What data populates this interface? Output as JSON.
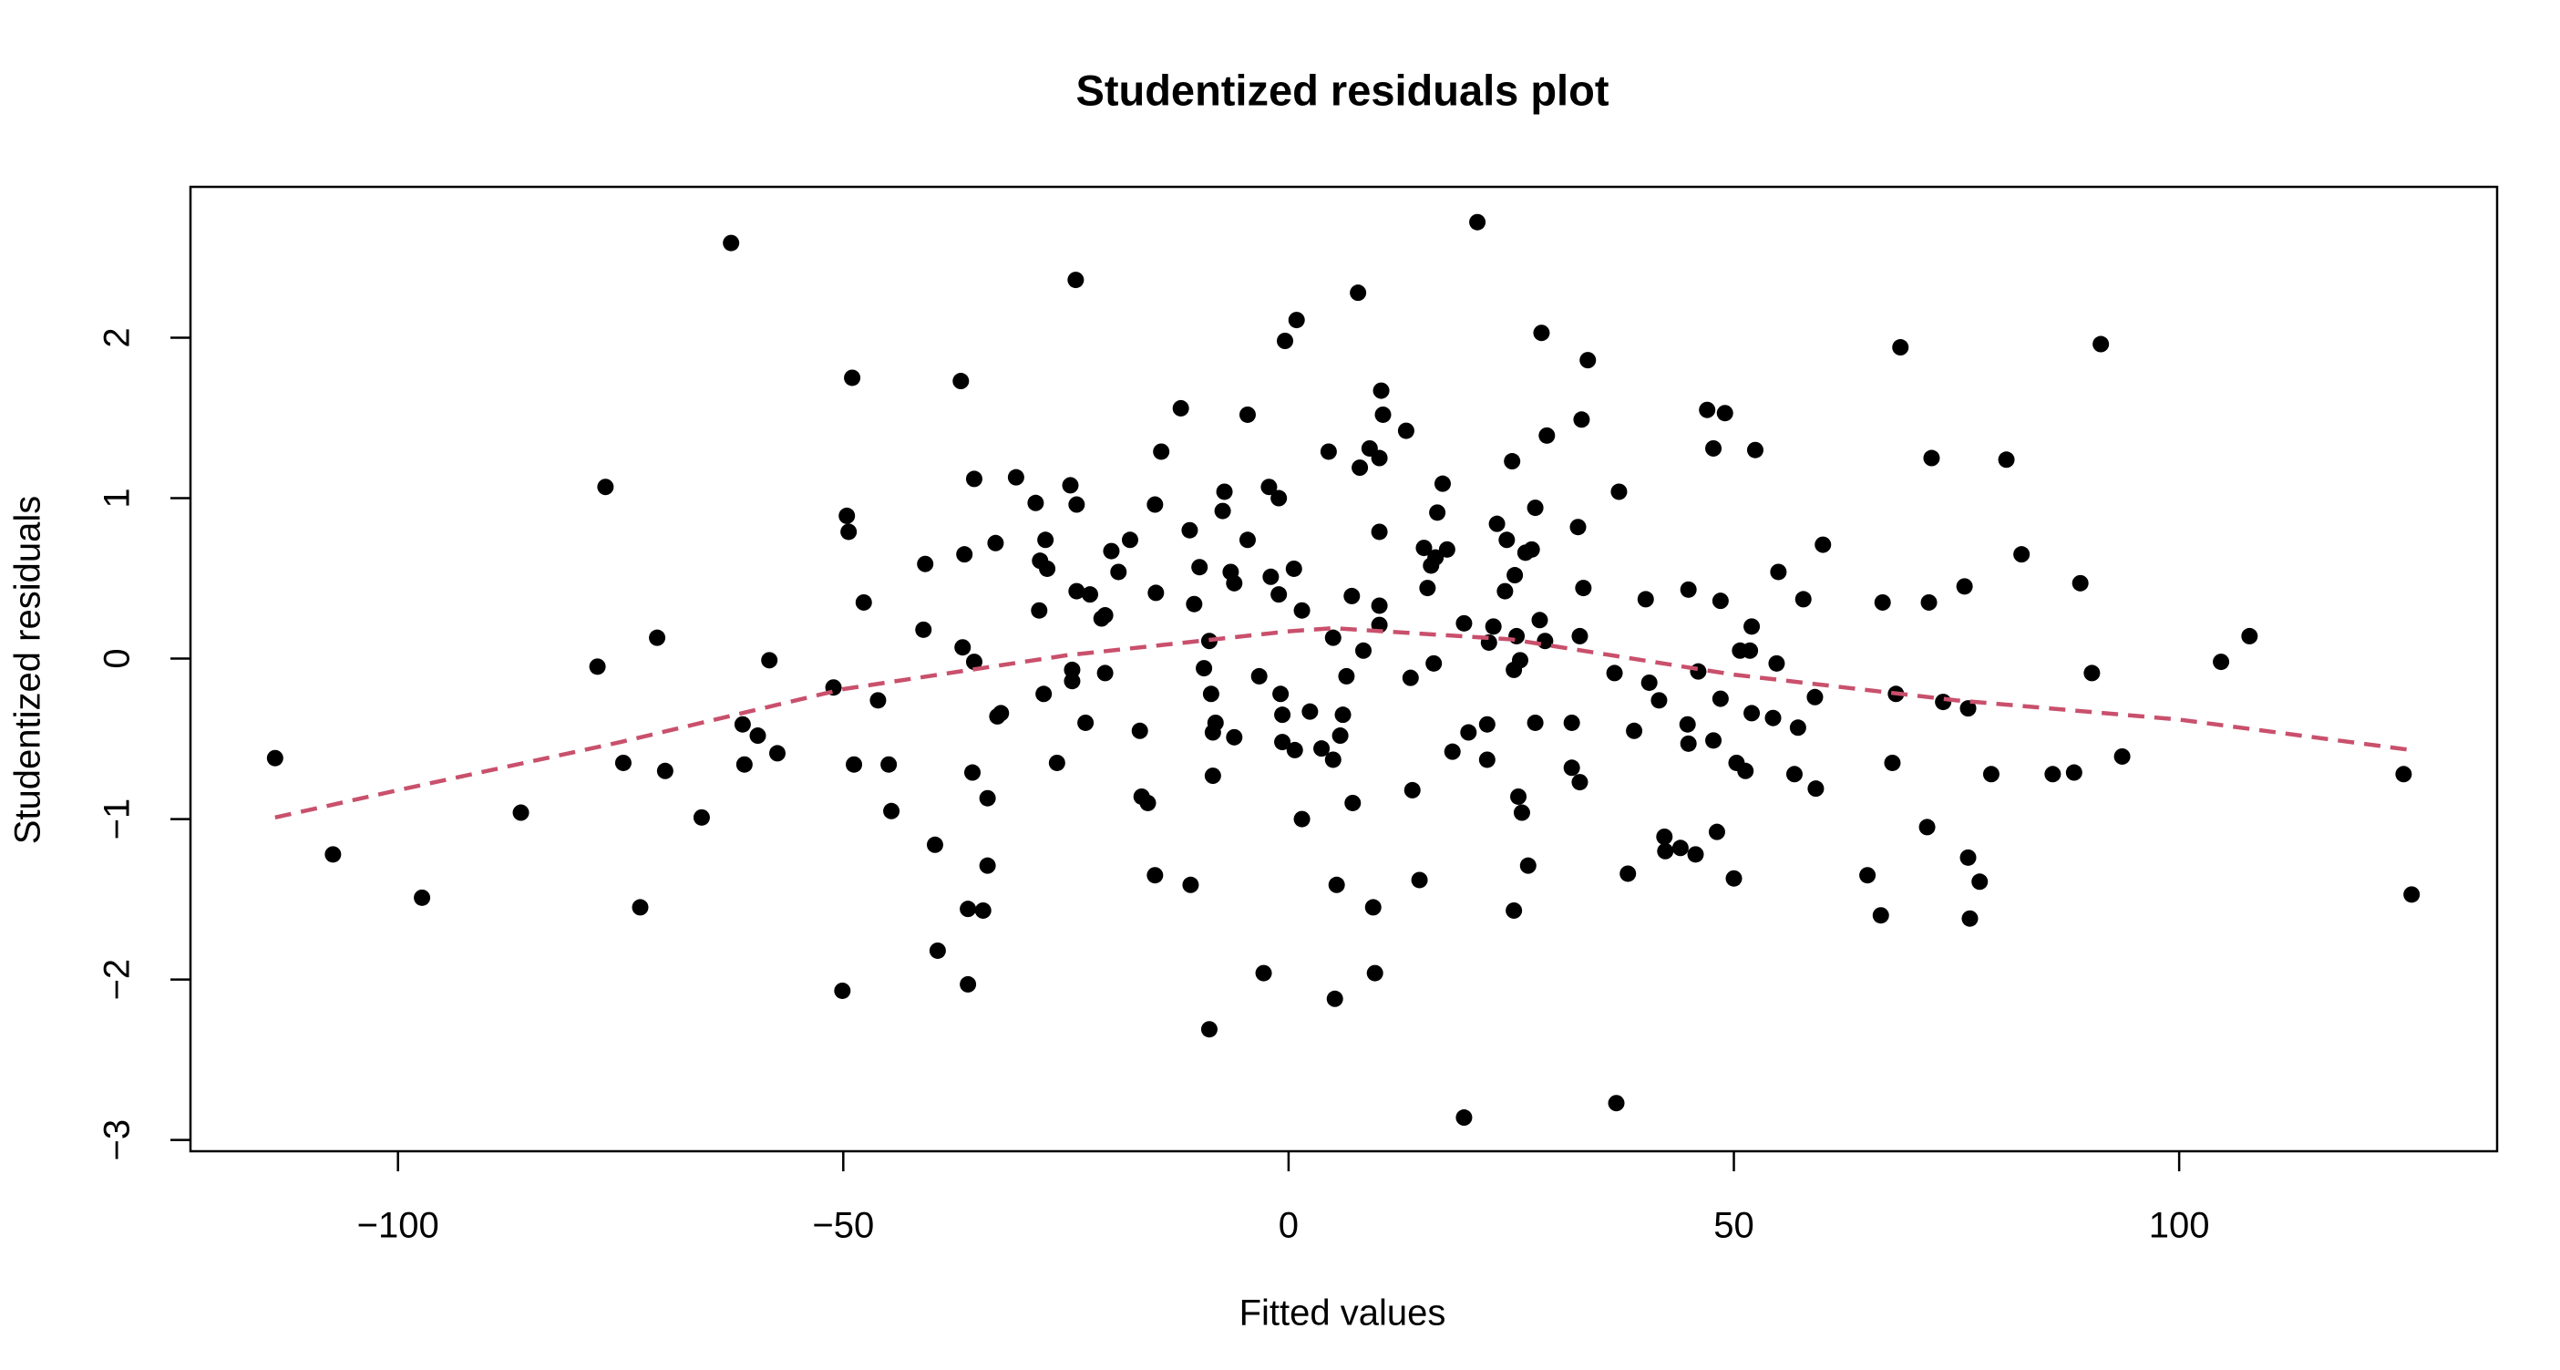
{
  "chart_data": {
    "type": "scatter",
    "title": "Studentized residuals plot",
    "x_label": "Fitted values",
    "y_label": "Studentized residuals",
    "xlim": [
      -123.3,
      135.7
    ],
    "ylim": [
      -3.07,
      2.94
    ],
    "xticks": [
      {
        "value": -100,
        "label": "−100"
      },
      {
        "value": -50,
        "label": "−50"
      },
      0,
      50,
      100
    ],
    "yticks": [
      {
        "value": -3,
        "label": "−3"
      },
      {
        "value": -2,
        "label": "−2"
      },
      {
        "value": -1,
        "label": "−1"
      },
      0,
      1,
      2
    ],
    "grid": false,
    "series": [
      {
        "type": "scatter",
        "color": "#000000",
        "x": [
          -113.8,
          -107.3,
          -97.3,
          -86.2,
          -77.6,
          -76.7,
          -74.7,
          -72.8,
          -70.9,
          -70.0,
          -65.9,
          -62.6,
          -61.3,
          -61.1,
          -59.6,
          -58.3,
          -57.4,
          -51.1,
          -50.1,
          -49.6,
          -49.4,
          -49.0,
          -48.8,
          -47.7,
          -46.1,
          -44.9,
          -44.6,
          -41.0,
          -40.8,
          -39.7,
          -39.4,
          -36.8,
          -36.6,
          -36.4,
          -36.0,
          -36.0,
          -35.5,
          -35.3,
          -35.3,
          -34.3,
          -33.8,
          -33.8,
          -32.9,
          -32.7,
          -32.3,
          -30.6,
          -28.4,
          -28.0,
          -27.9,
          -27.5,
          -27.3,
          -27.1,
          -26.0,
          -24.5,
          -24.3,
          -24.3,
          -23.9,
          -23.8,
          -23.8,
          -22.8,
          -22.3,
          -21.0,
          -20.6,
          -20.6,
          -19.9,
          -19.1,
          -17.8,
          -16.7,
          -16.5,
          -15.8,
          -15.0,
          -15.0,
          -14.9,
          -14.3,
          -12.1,
          -11.1,
          -11.0,
          -10.6,
          -10.0,
          -9.5,
          -8.9,
          -8.9,
          -8.7,
          -8.5,
          -8.5,
          -8.2,
          -7.4,
          -7.2,
          -6.5,
          -6.1,
          -6.1,
          -4.6,
          -4.6,
          -3.3,
          -2.8,
          -2.2,
          -2.0,
          -1.1,
          -1.1,
          -0.9,
          -0.7,
          -0.7,
          -0.4,
          0.6,
          0.7,
          0.9,
          1.5,
          1.5,
          2.4,
          3.7,
          4.5,
          5.0,
          5.0,
          5.2,
          5.4,
          5.8,
          6.1,
          6.5,
          7.1,
          7.2,
          7.8,
          8.0,
          8.4,
          9.1,
          9.5,
          9.7,
          10.2,
          10.2,
          10.2,
          10.2,
          10.4,
          10.6,
          13.2,
          13.7,
          13.9,
          14.7,
          15.2,
          15.6,
          16.0,
          16.3,
          16.5,
          16.7,
          17.3,
          17.8,
          18.4,
          19.7,
          19.7,
          20.2,
          21.2,
          22.3,
          22.3,
          22.5,
          23.0,
          23.4,
          24.3,
          24.5,
          25.1,
          25.3,
          25.3,
          25.4,
          25.6,
          25.8,
          26.0,
          26.2,
          26.6,
          26.9,
          27.3,
          27.7,
          27.7,
          28.2,
          28.4,
          28.8,
          29.0,
          31.8,
          31.8,
          32.5,
          32.7,
          32.7,
          32.9,
          33.1,
          33.6,
          36.6,
          36.8,
          37.1,
          38.1,
          38.8,
          40.1,
          40.5,
          41.6,
          42.2,
          42.3,
          44.0,
          44.8,
          44.9,
          44.9,
          45.7,
          46.0,
          47.0,
          47.7,
          47.7,
          48.1,
          48.5,
          48.5,
          49.0,
          50.0,
          50.3,
          50.7,
          51.3,
          51.8,
          52.0,
          52.0,
          52.4,
          54.4,
          54.8,
          55.0,
          56.8,
          57.2,
          57.8,
          59.1,
          59.2,
          60.0,
          65.0,
          66.5,
          66.7,
          67.8,
          68.2,
          68.7,
          71.7,
          71.9,
          72.2,
          73.5,
          75.9,
          76.3,
          76.3,
          76.5,
          77.6,
          78.9,
          80.6,
          82.3,
          85.8,
          88.2,
          88.9,
          90.2,
          91.2,
          93.6,
          104.7,
          107.9,
          125.2,
          126.1
        ],
        "values": [
          -0.62,
          -1.22,
          -1.49,
          -0.96,
          -0.05,
          1.07,
          -0.65,
          -1.55,
          0.13,
          -0.7,
          -0.99,
          2.59,
          -0.41,
          -0.66,
          -0.48,
          -0.01,
          -0.59,
          -0.18,
          -2.07,
          0.89,
          0.79,
          1.75,
          -0.66,
          0.35,
          -0.26,
          -0.66,
          -0.95,
          0.18,
          0.59,
          -1.16,
          -1.82,
          1.73,
          0.07,
          0.65,
          -1.56,
          -2.03,
          -0.71,
          1.12,
          -0.02,
          -1.57,
          -0.87,
          -1.29,
          0.72,
          -0.36,
          -0.34,
          1.13,
          0.97,
          0.3,
          0.61,
          -0.22,
          0.74,
          0.56,
          -0.65,
          1.08,
          -0.14,
          -0.07,
          2.36,
          0.96,
          0.42,
          -0.4,
          0.4,
          0.25,
          -0.09,
          0.27,
          0.67,
          0.54,
          0.74,
          -0.45,
          -0.86,
          -0.9,
          -1.35,
          0.96,
          0.41,
          1.29,
          1.56,
          0.8,
          -1.41,
          0.34,
          0.57,
          -0.06,
          -2.31,
          0.11,
          -0.22,
          -0.46,
          -0.73,
          -0.4,
          0.92,
          1.04,
          0.54,
          0.47,
          -0.49,
          1.52,
          0.74,
          -0.11,
          -1.96,
          1.07,
          0.51,
          1.0,
          0.4,
          -0.22,
          -0.35,
          -0.52,
          1.98,
          0.56,
          -0.57,
          2.11,
          0.3,
          -1.0,
          -0.33,
          -0.56,
          1.29,
          0.13,
          -0.63,
          -2.12,
          -1.41,
          -0.48,
          -0.35,
          -0.11,
          0.39,
          -0.9,
          2.28,
          1.19,
          0.05,
          1.31,
          -1.55,
          -1.96,
          1.25,
          0.33,
          0.21,
          0.79,
          1.67,
          1.52,
          1.42,
          -0.12,
          -0.82,
          -1.38,
          0.69,
          0.44,
          0.58,
          -0.03,
          0.63,
          0.91,
          1.09,
          0.68,
          -0.58,
          0.22,
          -2.86,
          -0.46,
          2.72,
          -0.41,
          -0.63,
          0.1,
          0.2,
          0.84,
          0.42,
          0.74,
          1.23,
          -0.07,
          -1.57,
          0.52,
          0.14,
          -0.86,
          -0.01,
          -0.96,
          0.66,
          -1.29,
          0.68,
          -0.4,
          0.94,
          0.24,
          2.03,
          0.11,
          1.39,
          -0.4,
          -0.68,
          0.82,
          0.14,
          -0.77,
          1.49,
          0.44,
          1.86,
          -0.09,
          -2.77,
          1.04,
          -1.34,
          -0.45,
          0.37,
          -0.15,
          -0.26,
          -1.11,
          -1.2,
          -1.18,
          -0.41,
          0.43,
          -0.53,
          -1.22,
          -0.08,
          1.55,
          1.31,
          -0.51,
          -1.08,
          -0.25,
          0.36,
          1.53,
          -1.37,
          -0.65,
          0.05,
          -0.7,
          0.05,
          0.2,
          -0.34,
          1.3,
          -0.37,
          -0.03,
          0.54,
          -0.72,
          -0.43,
          0.37,
          -0.24,
          -0.81,
          0.71,
          -1.35,
          -1.6,
          0.35,
          -0.65,
          -0.22,
          1.94,
          -1.05,
          0.35,
          1.25,
          -0.27,
          0.45,
          -1.24,
          -0.31,
          -1.62,
          -1.39,
          -0.72,
          1.24,
          0.65,
          -0.72,
          -0.71,
          0.47,
          -0.09,
          1.96,
          -0.61,
          -0.02,
          0.14,
          -0.72,
          -1.47
        ]
      },
      {
        "type": "line",
        "color": "#c9506c",
        "dashed": true,
        "x": [
          -113.8,
          -100,
          -75,
          -50,
          -25,
          0,
          5,
          25,
          50,
          75,
          100,
          126.1
        ],
        "values": [
          -0.99,
          -0.82,
          -0.52,
          -0.19,
          0.02,
          0.17,
          0.19,
          0.12,
          -0.1,
          -0.26,
          -0.38,
          -0.57
        ]
      }
    ]
  }
}
